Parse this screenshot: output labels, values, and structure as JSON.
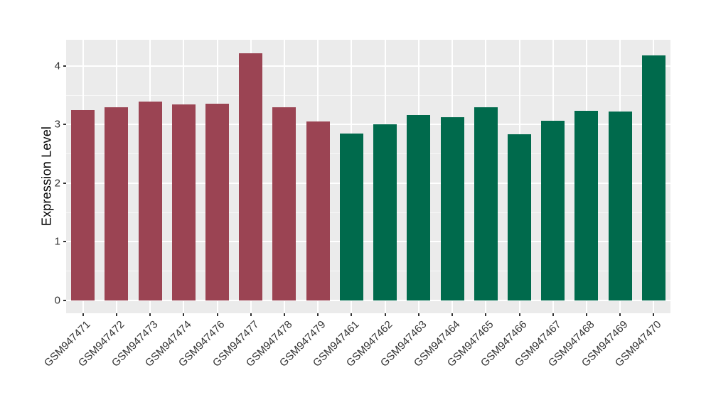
{
  "chart_data": {
    "type": "bar",
    "title": "",
    "xlabel": "",
    "ylabel": "Expression Level",
    "categories": [
      "GSM947471",
      "GSM947472",
      "GSM947473",
      "GSM947474",
      "GSM947476",
      "GSM947477",
      "GSM947478",
      "GSM947479",
      "GSM947461",
      "GSM947462",
      "GSM947463",
      "GSM947464",
      "GSM947465",
      "GSM947466",
      "GSM947467",
      "GSM947468",
      "GSM947469",
      "GSM947470"
    ],
    "values": [
      3.25,
      3.3,
      3.39,
      3.34,
      3.35,
      4.21,
      3.3,
      3.05,
      2.85,
      3.0,
      3.16,
      3.13,
      3.3,
      2.84,
      3.07,
      3.24,
      3.22,
      4.18
    ],
    "bar_colors": [
      "#9B4453",
      "#9B4453",
      "#9B4453",
      "#9B4453",
      "#9B4453",
      "#9B4453",
      "#9B4453",
      "#9B4453",
      "#006A4C",
      "#006A4C",
      "#006A4C",
      "#006A4C",
      "#006A4C",
      "#006A4C",
      "#006A4C",
      "#006A4C",
      "#006A4C",
      "#006A4C"
    ],
    "group_colors": {
      "left_group": "#9B4453",
      "right_group": "#006A4C"
    },
    "yticks": [
      0,
      1,
      2,
      3,
      4
    ],
    "yminor": [
      0.5,
      1.5,
      2.5,
      3.5
    ],
    "ylim": [
      0,
      4.42
    ],
    "grid": "major+minor",
    "legend_position": "none",
    "panel_bg": "#EBEBEB",
    "grid_color": "#FFFFFF",
    "tick_color": "#333333"
  }
}
